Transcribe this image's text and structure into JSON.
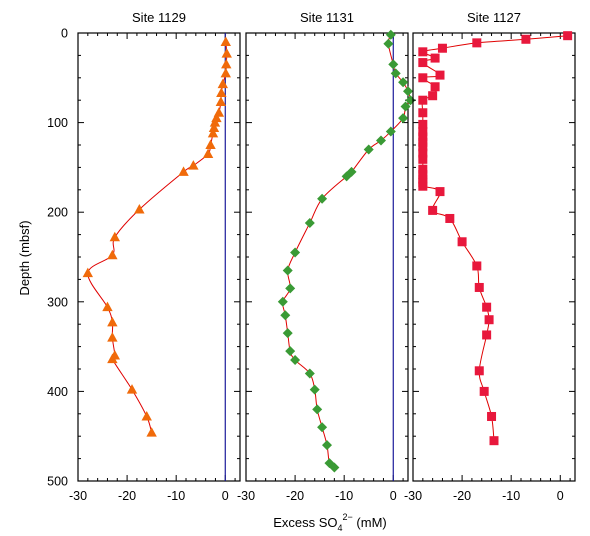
{
  "figure": {
    "ylabel": "Depth (mbsf)",
    "xlabel_prefix": "Excess SO",
    "xlabel_sub": "4",
    "xlabel_sup": "2−",
    "xlabel_suffix": " (mM)",
    "y_ticks": [
      "0",
      "100",
      "200",
      "300",
      "400",
      "500"
    ],
    "x_tick_labels": [
      "-30",
      "-20",
      "-10",
      "0"
    ]
  },
  "colors": {
    "site1129": "#f06a0a",
    "site1131": "#3a9a35",
    "site1127": "#e8183c",
    "curve": "#e00000",
    "reference_line": "#1a1a9a"
  },
  "chart_data": [
    {
      "type": "line",
      "title": "Site  1129",
      "marker": "triangle",
      "xlim": [
        -30,
        3
      ],
      "ylim": [
        0,
        500
      ],
      "y_inverted": true,
      "reference_x": 0,
      "series": [
        {
          "x": [
            0.1,
            0.3,
            0.2,
            0.1,
            -0.5,
            -0.8,
            -0.9,
            -1.3,
            -1.8,
            -2.1,
            -2.3,
            -2.5,
            -3,
            -3.5,
            -6.5,
            -8.5,
            -17.5,
            -22.5,
            -23,
            -28,
            -24,
            -23,
            -23,
            -22.5,
            -23,
            -19,
            -16,
            -15
          ],
          "y": [
            10,
            23,
            35,
            45,
            57,
            67,
            77,
            89,
            95,
            100,
            106,
            112,
            125,
            135,
            148,
            155,
            197,
            228,
            248,
            268,
            306,
            323,
            340,
            360,
            364,
            398,
            428,
            446
          ]
        }
      ]
    },
    {
      "type": "line",
      "title": "Site  1131",
      "marker": "diamond",
      "xlim": [
        -30,
        3
      ],
      "ylim": [
        0,
        500
      ],
      "y_inverted": true,
      "reference_x": 0,
      "series": [
        {
          "x": [
            -0.5,
            -1,
            0,
            0.5,
            2,
            3,
            3.5,
            2.5,
            2,
            -0.5,
            -2.5,
            -5,
            -8.5,
            -9.5,
            -14.5,
            -17,
            -20,
            -21.5,
            -21,
            -22.5,
            -22,
            -21.5,
            -21,
            -20,
            -17,
            -16,
            -15.5,
            -14.5,
            -13.5,
            -13,
            -12
          ],
          "y": [
            2,
            12,
            35,
            45,
            55,
            65,
            75,
            82,
            95,
            110,
            120,
            130,
            155,
            160,
            185,
            212,
            245,
            265,
            285,
            300,
            315,
            335,
            355,
            365,
            380,
            398,
            420,
            440,
            460,
            480,
            485
          ]
        }
      ]
    },
    {
      "type": "line",
      "title": "Site  1127",
      "marker": "square",
      "xlim": [
        -30,
        3
      ],
      "ylim": [
        0,
        500
      ],
      "y_inverted": true,
      "reference_x": null,
      "series": [
        {
          "x": [
            1.5,
            -7,
            -17,
            -24,
            -28,
            -25.5,
            -28,
            -24.5,
            -28,
            -25.5,
            -26,
            -28,
            -28,
            -28,
            -28,
            -28,
            -28,
            -28,
            -28,
            -28,
            -28,
            -28,
            -28,
            -28,
            -28,
            -24.5,
            -26,
            -22.5,
            -20,
            -17,
            -16.5,
            -15,
            -14.5,
            -15,
            -16.5,
            -15.5,
            -14,
            -13.5
          ],
          "y": [
            3,
            7,
            11,
            17,
            21,
            28,
            33,
            47,
            50,
            60,
            70,
            75,
            89,
            102,
            110,
            116,
            122,
            127,
            134,
            141,
            152,
            158,
            163,
            167,
            171,
            177,
            198,
            207,
            233,
            260,
            284,
            306,
            320,
            337,
            377,
            400,
            428,
            455
          ]
        }
      ]
    }
  ]
}
